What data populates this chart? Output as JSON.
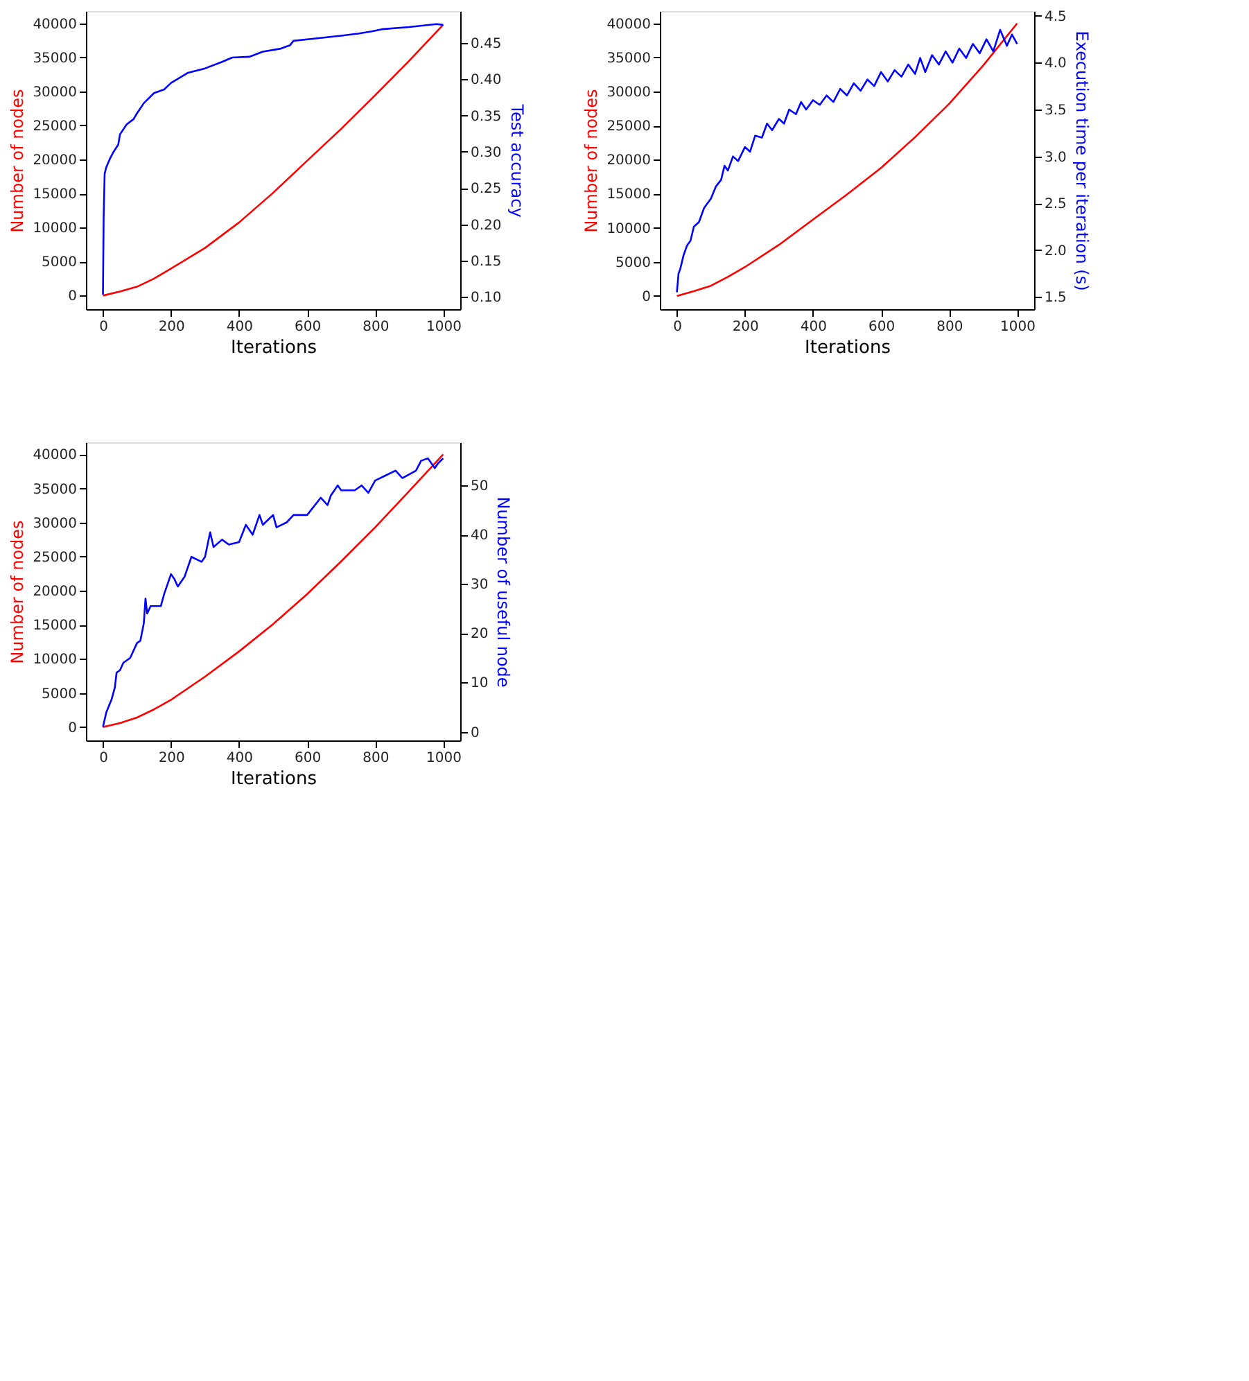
{
  "chart_data": [
    {
      "type": "line",
      "xlabel": "Iterations",
      "ylabel": "Number of nodes",
      "y2label": "Test accuracy",
      "xlim": [
        -50,
        1050
      ],
      "xticks": [
        0,
        200,
        400,
        600,
        800,
        1000
      ],
      "ylim": [
        -2000,
        41800
      ],
      "yticks": [
        0,
        5000,
        10000,
        15000,
        20000,
        25000,
        30000,
        35000,
        40000
      ],
      "y2lim": [
        0.083,
        0.494
      ],
      "y2ticks": [
        {
          "value": 0.1,
          "label": "0.10"
        },
        {
          "value": 0.15,
          "label": "0.15"
        },
        {
          "value": 0.2,
          "label": "0.20"
        },
        {
          "value": 0.25,
          "label": "0.25"
        },
        {
          "value": 0.3,
          "label": "0.30"
        },
        {
          "value": 0.35,
          "label": "0.35"
        },
        {
          "value": 0.4,
          "label": "0.40"
        },
        {
          "value": 0.45,
          "label": "0.45"
        }
      ],
      "series": [
        {
          "color": "#ff0000",
          "x": [
            0,
            50,
            100,
            150,
            200,
            300,
            400,
            500,
            600,
            700,
            800,
            900,
            1000
          ],
          "values": [
            0,
            600,
            1300,
            2500,
            3975,
            7000,
            10745,
            15100,
            19810,
            24500,
            29440,
            34500,
            39800
          ]
        },
        {
          "color": "#0000ff",
          "axis": "y2",
          "x": [
            0,
            2,
            5,
            10,
            20,
            30,
            45,
            50,
            60,
            70,
            90,
            100,
            120,
            150,
            180,
            200,
            250,
            300,
            350,
            380,
            430,
            470,
            520,
            550,
            560,
            620,
            700,
            750,
            790,
            820,
            900,
            980,
            1000
          ],
          "values": [
            0.103,
            0.209,
            0.27,
            0.279,
            0.29,
            0.299,
            0.31,
            0.324,
            0.331,
            0.338,
            0.345,
            0.353,
            0.367,
            0.381,
            0.386,
            0.395,
            0.409,
            0.415,
            0.424,
            0.43,
            0.431,
            0.438,
            0.442,
            0.447,
            0.453,
            0.456,
            0.46,
            0.463,
            0.466,
            0.469,
            0.472,
            0.476,
            0.475
          ]
        }
      ]
    },
    {
      "type": "line",
      "xlabel": "Iterations",
      "ylabel": "Number of nodes",
      "y2label": "Execution time per iteration (s)",
      "xlim": [
        -50,
        1050
      ],
      "xticks": [
        0,
        200,
        400,
        600,
        800,
        1000
      ],
      "ylim": [
        -1940,
        41800
      ],
      "yticks": [
        0,
        5000,
        10000,
        15000,
        20000,
        25000,
        30000,
        35000,
        40000
      ],
      "y2lim": [
        1.37,
        4.55
      ],
      "y2ticks": [
        1.5,
        {
          "value": 2,
          "label": "2.0"
        },
        2.5,
        {
          "value": 3,
          "label": "3.0"
        },
        3.5,
        {
          "value": 4,
          "label": "4.0"
        },
        4.5
      ],
      "series": [
        {
          "color": "#ff0000",
          "x": [
            0,
            50,
            100,
            150,
            200,
            300,
            400,
            500,
            600,
            700,
            800,
            900,
            1000
          ],
          "values": [
            0,
            700,
            1500,
            2800,
            4240,
            7500,
            11210,
            14900,
            18790,
            23300,
            28180,
            33800,
            40000
          ]
        },
        {
          "color": "#0000ff",
          "axis": "y2",
          "x": [
            0,
            5,
            10,
            20,
            30,
            40,
            50,
            65,
            80,
            90,
            100,
            115,
            130,
            140,
            150,
            165,
            180,
            200,
            215,
            230,
            250,
            265,
            280,
            300,
            315,
            330,
            350,
            365,
            380,
            400,
            420,
            440,
            460,
            480,
            500,
            520,
            540,
            560,
            580,
            600,
            620,
            640,
            660,
            680,
            700,
            715,
            730,
            750,
            770,
            790,
            810,
            830,
            850,
            870,
            890,
            910,
            930,
            950,
            970,
            985,
            1000
          ],
          "values": [
            1.55,
            1.75,
            1.8,
            1.95,
            2.05,
            2.1,
            2.25,
            2.3,
            2.45,
            2.5,
            2.55,
            2.68,
            2.75,
            2.9,
            2.85,
            3.0,
            2.95,
            3.1,
            3.05,
            3.22,
            3.2,
            3.35,
            3.28,
            3.4,
            3.35,
            3.5,
            3.45,
            3.58,
            3.5,
            3.6,
            3.55,
            3.65,
            3.58,
            3.72,
            3.65,
            3.78,
            3.7,
            3.82,
            3.75,
            3.9,
            3.8,
            3.92,
            3.85,
            3.98,
            3.88,
            4.05,
            3.9,
            4.08,
            3.98,
            4.12,
            4.0,
            4.15,
            4.05,
            4.2,
            4.1,
            4.25,
            4.12,
            4.35,
            4.18,
            4.3,
            4.2
          ]
        }
      ]
    },
    {
      "type": "line",
      "xlabel": "Iterations",
      "ylabel": "Number of nodes",
      "y2label": "Number of useful node",
      "xlim": [
        -50,
        1050
      ],
      "xticks": [
        0,
        200,
        400,
        600,
        800,
        1000
      ],
      "ylim": [
        -1950,
        41760
      ],
      "yticks": [
        0,
        5000,
        10000,
        15000,
        20000,
        25000,
        30000,
        35000,
        40000
      ],
      "y2lim": [
        -1.75,
        58.75
      ],
      "y2ticks": [
        0,
        10,
        20,
        30,
        40,
        50
      ],
      "series": [
        {
          "color": "#ff0000",
          "x": [
            0,
            50,
            100,
            150,
            200,
            300,
            400,
            500,
            600,
            700,
            800,
            900,
            1000
          ],
          "values": [
            0,
            600,
            1400,
            2600,
            4000,
            7400,
            11100,
            15100,
            19500,
            24300,
            29300,
            34600,
            40000
          ]
        },
        {
          "color": "#0000ff",
          "axis": "y2",
          "x": [
            0,
            10,
            25,
            35,
            40,
            50,
            60,
            80,
            100,
            110,
            120,
            125,
            130,
            140,
            170,
            180,
            200,
            210,
            220,
            240,
            260,
            290,
            300,
            315,
            325,
            350,
            370,
            400,
            420,
            440,
            460,
            470,
            500,
            510,
            540,
            560,
            600,
            640,
            660,
            670,
            690,
            700,
            740,
            760,
            780,
            800,
            830,
            860,
            880,
            920,
            935,
            955,
            975,
            985,
            1000
          ],
          "values": [
            1,
            4,
            6.5,
            9,
            12,
            12.5,
            14,
            15,
            18,
            18.5,
            22,
            27,
            24,
            25.5,
            25.5,
            28,
            32,
            31,
            29.5,
            31.5,
            35.5,
            34.5,
            35.5,
            40.5,
            37.5,
            39,
            38,
            38.5,
            42,
            40,
            44,
            42,
            44,
            41.5,
            42.5,
            44,
            44,
            47.5,
            46,
            48,
            50,
            49,
            49,
            50,
            48.5,
            51,
            52,
            53,
            51.5,
            53,
            55,
            55.5,
            53.5,
            54.5,
            55.5
          ]
        }
      ]
    }
  ]
}
